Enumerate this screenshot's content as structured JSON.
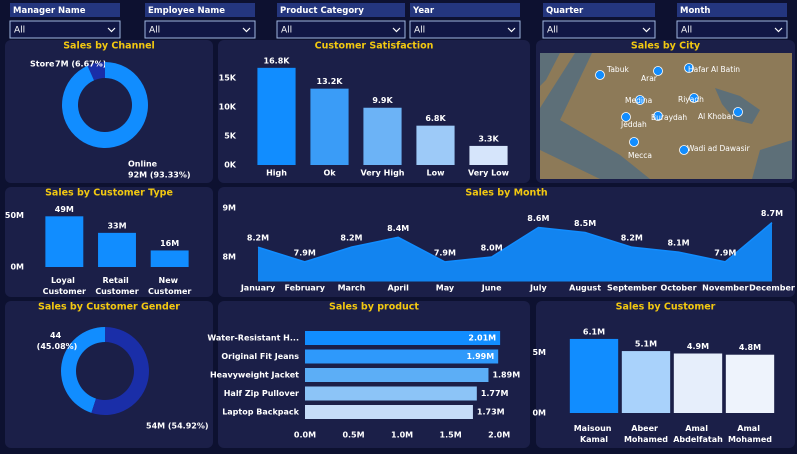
{
  "filters": [
    {
      "label": "Manager Name",
      "value": "All"
    },
    {
      "label": "Employee Name",
      "value": "All"
    },
    {
      "label": "Product Category",
      "value": "All"
    },
    {
      "label": "Year",
      "value": "All"
    },
    {
      "label": "Quarter",
      "value": "All"
    },
    {
      "label": "Month",
      "value": "All"
    }
  ],
  "chart_data": [
    {
      "type": "donut",
      "title": "Sales by Channel",
      "categories": [
        "Store",
        "Online"
      ],
      "values": [
        6.67,
        93.33
      ],
      "value_labels": [
        "7M (6.67%)",
        "92M (93.33%)"
      ],
      "colors": [
        "#1a2ea8",
        "#118dff"
      ]
    },
    {
      "type": "bar",
      "title": "Customer Satisfaction",
      "categories": [
        "High",
        "Ok",
        "Very High",
        "Low",
        "Very Low"
      ],
      "values": [
        16800,
        13200,
        9900,
        6800,
        3300
      ],
      "value_labels": [
        "16.8K",
        "13.2K",
        "9.9K",
        "6.8K",
        "3.3K"
      ],
      "colors": [
        "#118dff",
        "#3a9cf7",
        "#6cb3f6",
        "#9dcaf8",
        "#d6e5fb"
      ],
      "ylim": [
        0,
        18500
      ],
      "yticks": [
        {
          "value": 0,
          "label": "0K"
        },
        {
          "value": 5000,
          "label": "5K"
        },
        {
          "value": 10000,
          "label": "10K"
        },
        {
          "value": 15000,
          "label": "15K"
        }
      ]
    },
    {
      "type": "map",
      "title": "Sales by City",
      "cities": [
        "Tabuk",
        "Arar",
        "Hafar Al Batin",
        "Medina",
        "Riyadh",
        "Buraydah",
        "Al Khobar",
        "Jeddah",
        "Wadi ad Dawasir",
        "Mecca"
      ]
    },
    {
      "type": "bar",
      "title": "Sales by Customer Type",
      "categories": [
        "Loyal Customer",
        "Retail Customer",
        "New Customer"
      ],
      "values": [
        49,
        33,
        16
      ],
      "value_labels": [
        "49M",
        "33M",
        "16M"
      ],
      "color": "#118dff",
      "ylim": [
        0,
        58
      ],
      "yticks": [
        {
          "value": 0,
          "label": "0M"
        },
        {
          "value": 50,
          "label": "50M"
        }
      ]
    },
    {
      "type": "area",
      "title": "Sales by Month",
      "categories": [
        "January",
        "February",
        "March",
        "April",
        "May",
        "June",
        "July",
        "August",
        "September",
        "October",
        "November",
        "December"
      ],
      "values": [
        8.2,
        7.9,
        8.2,
        8.4,
        7.9,
        8.0,
        8.6,
        8.5,
        8.2,
        8.1,
        7.9,
        8.7
      ],
      "value_labels": [
        "8.2M",
        "7.9M",
        "8.2M",
        "8.4M",
        "7.9M",
        "8.0M",
        "8.6M",
        "8.5M",
        "8.2M",
        "8.1M",
        "7.9M",
        "8.7M"
      ],
      "color": "#118dff",
      "ylim": [
        7.5,
        9.1
      ],
      "yticks": [
        {
          "value": 8,
          "label": "8M"
        },
        {
          "value": 9,
          "label": "9M"
        }
      ]
    },
    {
      "type": "donut",
      "title": "Sales by Customer Gender",
      "values": [
        45.08,
        54.92
      ],
      "value_labels": [
        "44 (45.08%)",
        "54M (54.92%)"
      ],
      "colors": [
        "#118dff",
        "#1a2ea8"
      ]
    },
    {
      "type": "hbar",
      "title": "Sales by product",
      "categories": [
        "Water-Resistant H...",
        "Original Fit Jeans",
        "Heavyweight Jacket",
        "Half Zip Pullover",
        "Laptop Backpack"
      ],
      "values": [
        2.01,
        1.99,
        1.89,
        1.77,
        1.73
      ],
      "value_labels": [
        "2.01M",
        "1.99M",
        "1.89M",
        "1.77M",
        "1.73M"
      ],
      "colors": [
        "#118dff",
        "#2e99fb",
        "#5caef6",
        "#8cc4f7",
        "#c6dcf8"
      ],
      "xlim": [
        0,
        2.05
      ],
      "xticks": [
        {
          "value": 0,
          "label": "0.0M"
        },
        {
          "value": 0.5,
          "label": "0.5M"
        },
        {
          "value": 1,
          "label": "1.0M"
        },
        {
          "value": 1.5,
          "label": "1.5M"
        },
        {
          "value": 2,
          "label": "2.0M"
        }
      ]
    },
    {
      "type": "bar",
      "title": "Sales by Customer",
      "categories": [
        "Maisoun Kamal",
        "Abeer Mohamed",
        "Amal Abdelfatah",
        "Amal Mohamed"
      ],
      "values": [
        6.1,
        5.1,
        4.9,
        4.8
      ],
      "value_labels": [
        "6.1M",
        "5.1M",
        "4.9M",
        "4.8M"
      ],
      "colors": [
        "#118dff",
        "#a9d2fb",
        "#e6eefb",
        "#eef3fc"
      ],
      "ylim": [
        0,
        7
      ],
      "yticks": [
        {
          "value": 0,
          "label": "0M"
        },
        {
          "value": 5,
          "label": "5M"
        }
      ]
    }
  ]
}
